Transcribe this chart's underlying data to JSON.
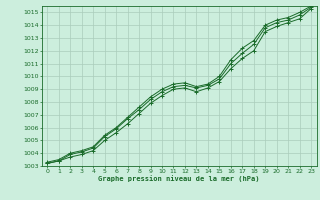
{
  "xlabel": "Graphe pression niveau de la mer (hPa)",
  "background_color": "#cceedd",
  "grid_color": "#aaccbb",
  "line_color": "#1a6b2a",
  "ylim": [
    1003,
    1015.5
  ],
  "xlim": [
    -0.5,
    23.5
  ],
  "yticks": [
    1003,
    1004,
    1005,
    1006,
    1007,
    1008,
    1009,
    1010,
    1011,
    1012,
    1013,
    1014,
    1015
  ],
  "xticks": [
    0,
    1,
    2,
    3,
    4,
    5,
    6,
    7,
    8,
    9,
    10,
    11,
    12,
    13,
    14,
    15,
    16,
    17,
    18,
    19,
    20,
    21,
    22,
    23
  ],
  "line1": [
    1003.2,
    1003.4,
    1003.7,
    1003.9,
    1004.2,
    1005.0,
    1005.6,
    1006.3,
    1007.1,
    1007.9,
    1008.5,
    1009.0,
    1009.1,
    1008.8,
    1009.1,
    1009.6,
    1010.6,
    1011.4,
    1012.0,
    1013.5,
    1013.9,
    1014.2,
    1014.5,
    1015.3
  ],
  "line2": [
    1003.2,
    1003.4,
    1003.9,
    1004.1,
    1004.4,
    1005.3,
    1005.9,
    1006.7,
    1007.4,
    1008.2,
    1008.8,
    1009.2,
    1009.3,
    1009.1,
    1009.3,
    1009.8,
    1011.0,
    1011.8,
    1012.5,
    1013.8,
    1014.2,
    1014.4,
    1014.8,
    1015.4
  ],
  "line3": [
    1003.3,
    1003.5,
    1004.0,
    1004.2,
    1004.5,
    1005.4,
    1006.0,
    1006.8,
    1007.6,
    1008.4,
    1009.0,
    1009.4,
    1009.5,
    1009.2,
    1009.4,
    1010.0,
    1011.3,
    1012.2,
    1012.8,
    1014.0,
    1014.4,
    1014.6,
    1015.0,
    1015.5
  ]
}
